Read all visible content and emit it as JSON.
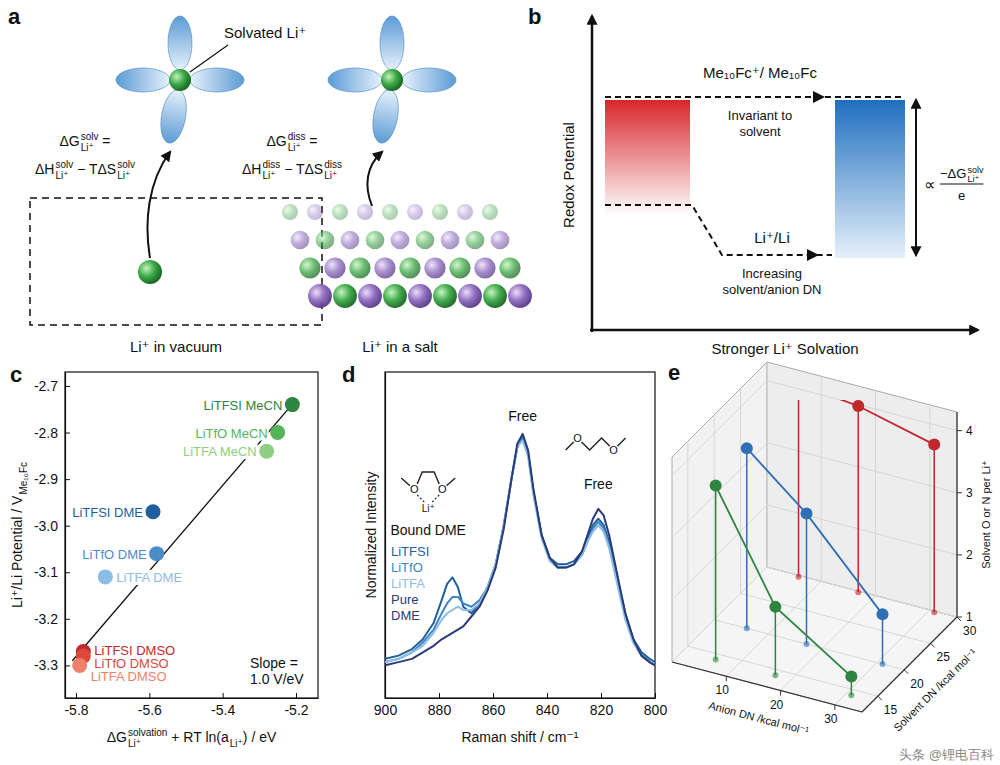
{
  "panel_a": {
    "letter": "a",
    "solvated_label": "Solvated Li⁺",
    "solvation_equation": [
      [
        {
          "text": "ΔG",
          "sup": "solv",
          "sub": "Li⁺"
        },
        {
          "text": " ="
        }
      ],
      [
        {
          "text": "ΔH",
          "sup": "solv",
          "sub": "Li⁺"
        },
        {
          "text": " − TΔS",
          "sup": "solv",
          "sub": "Li⁺"
        }
      ]
    ],
    "dissolution_equation": [
      [
        {
          "text": "ΔG",
          "sup": "diss",
          "sub": "Li⁺"
        },
        {
          "text": " ="
        }
      ],
      [
        {
          "text": "ΔH",
          "sup": "diss",
          "sub": "Li⁺"
        },
        {
          "text": " − TΔS",
          "sup": "diss",
          "sub": "Li⁺"
        }
      ]
    ],
    "vacuum_caption": "Li⁺ in vacuum",
    "salt_caption": "Li⁺ in a salt"
  },
  "panel_b": {
    "letter": "b",
    "y_label": "Redox Potential",
    "x_label": "Stronger Li⁺ Solvation",
    "reference_label": "Me₁₀Fc⁺/ Me₁₀Fc",
    "reference_note": [
      "Invariant to",
      "solvent"
    ],
    "lithium_label": "Li⁺/Li",
    "lithium_note": [
      "Increasing",
      "solvent/anion DN"
    ],
    "gap_label": {
      "symbol": "∝",
      "numerator": [
        {
          "text": "−ΔG",
          "sup": "solv",
          "sub": "Li⁺"
        }
      ],
      "denominator": "e"
    }
  },
  "chart_data": [
    {
      "panel_label": "c",
      "type": "scatter",
      "x_label": [
        {
          "text": "ΔG",
          "sup": "solvation",
          "sub": "Li⁺"
        },
        {
          "text": " + RT ln(a",
          "sub": "Li⁺"
        },
        {
          "text": ") / eV"
        }
      ],
      "y_label": [
        {
          "text": "Li⁺/Li Potential / V",
          "sub": "Me₁₀Fc"
        }
      ],
      "xlim": [
        -5.83,
        -5.14
      ],
      "xticks": [
        -5.8,
        -5.6,
        -5.4,
        -5.2
      ],
      "ylim": [
        -3.37,
        -2.67
      ],
      "yticks": [
        -2.7,
        -2.8,
        -2.9,
        {
          "value": -3,
          "label": "-3.0"
        },
        -3.1,
        -3.2,
        -3.3
      ],
      "point_labels": [
        "LiTFSI MeCN",
        "LiTfO MeCN",
        "LiTFA MeCN",
        "LiTFSI DME",
        "LiTfO DME",
        "LiTFA DME",
        "LiTFSI DMSO",
        "LiTfO DMSO",
        "LiTFA DMSO"
      ],
      "x": [
        -5.21,
        -5.25,
        -5.28,
        -5.59,
        -5.58,
        -5.72,
        -5.78,
        -5.78,
        -5.79
      ],
      "y": [
        -2.74,
        -2.8,
        -2.84,
        -2.97,
        -3.06,
        -3.11,
        -3.27,
        -3.28,
        -3.3
      ],
      "colors": [
        "#2e8540",
        "#55b35a",
        "#8fce85",
        "#1f5f9e",
        "#4a8cc7",
        "#8cbde3",
        "#c0282d",
        "#e0473c",
        "#f07f6b"
      ],
      "fit_line": {
        "x": [
          -5.81,
          -5.2
        ],
        "y": [
          -3.29,
          -2.73
        ]
      },
      "annotation": [
        "Slope =",
        "1.0 V/eV"
      ]
    },
    {
      "panel_label": "d",
      "type": "line",
      "x_label": "Raman shift / cm⁻¹",
      "y_label": "Normalized Intensity",
      "xlim": [
        900,
        800
      ],
      "xticks": [
        900,
        880,
        860,
        840,
        820,
        800
      ],
      "ylim": [
        0,
        1
      ],
      "yticks": [],
      "tick_labels": "x",
      "x": [
        900,
        895,
        890,
        886,
        882,
        879,
        877,
        875,
        873,
        871,
        868,
        865,
        862,
        859,
        856,
        853,
        851,
        849,
        847,
        845,
        842,
        839,
        836,
        833,
        830,
        827,
        825,
        823,
        821,
        819,
        817,
        814,
        811,
        808,
        805,
        802,
        800
      ],
      "series": [
        {
          "name": "LiTFSI",
          "color": "#1f5f9e",
          "values": [
            0.12,
            0.13,
            0.15,
            0.18,
            0.23,
            0.3,
            0.35,
            0.37,
            0.34,
            0.28,
            0.26,
            0.29,
            0.34,
            0.41,
            0.53,
            0.68,
            0.77,
            0.8,
            0.75,
            0.63,
            0.5,
            0.43,
            0.41,
            0.41,
            0.42,
            0.45,
            0.49,
            0.53,
            0.55,
            0.53,
            0.48,
            0.37,
            0.26,
            0.18,
            0.14,
            0.12,
            0.11
          ]
        },
        {
          "name": "LiTfO",
          "color": "#3d85c6",
          "values": [
            0.11,
            0.12,
            0.14,
            0.17,
            0.21,
            0.26,
            0.29,
            0.31,
            0.31,
            0.29,
            0.28,
            0.3,
            0.34,
            0.41,
            0.53,
            0.68,
            0.77,
            0.8,
            0.75,
            0.63,
            0.5,
            0.43,
            0.4,
            0.4,
            0.41,
            0.44,
            0.48,
            0.52,
            0.54,
            0.52,
            0.47,
            0.36,
            0.25,
            0.17,
            0.13,
            0.11,
            0.1
          ]
        },
        {
          "name": "LiTFA",
          "color": "#8cbde3",
          "values": [
            0.11,
            0.12,
            0.14,
            0.16,
            0.2,
            0.24,
            0.26,
            0.27,
            0.28,
            0.27,
            0.27,
            0.29,
            0.34,
            0.41,
            0.53,
            0.68,
            0.77,
            0.79,
            0.74,
            0.62,
            0.49,
            0.42,
            0.4,
            0.4,
            0.41,
            0.44,
            0.48,
            0.51,
            0.53,
            0.51,
            0.46,
            0.35,
            0.24,
            0.17,
            0.13,
            0.11,
            0.1
          ]
        },
        {
          "name": "Pure DME",
          "color": "#2b3a78",
          "values": [
            0.1,
            0.11,
            0.12,
            0.14,
            0.16,
            0.18,
            0.19,
            0.2,
            0.21,
            0.22,
            0.25,
            0.28,
            0.33,
            0.4,
            0.52,
            0.68,
            0.78,
            0.81,
            0.76,
            0.64,
            0.5,
            0.43,
            0.4,
            0.4,
            0.41,
            0.45,
            0.5,
            0.55,
            0.58,
            0.56,
            0.5,
            0.38,
            0.26,
            0.18,
            0.13,
            0.11,
            0.1
          ]
        }
      ],
      "annotations": [
        {
          "text": "Free",
          "x": 849,
          "y": 0.85
        },
        {
          "text": "Free",
          "x": 821,
          "y": 0.64
        },
        {
          "text": "Bound DME",
          "x": 884,
          "y": 0.5
        }
      ],
      "molecule_atom": "O",
      "bound_ion": "Li⁺"
    },
    {
      "panel_label": "e",
      "type": "scatter3d",
      "x_label": "Anion DN /kcal mol⁻¹",
      "y_label": "Solvent DN /kcal mol⁻¹",
      "z_label": "Solvent O or N per Li⁺",
      "xlim": [
        0,
        35
      ],
      "xticks": [
        10,
        20,
        30
      ],
      "ylim": [
        12,
        30
      ],
      "yticks": [
        15,
        20,
        25,
        30
      ],
      "zlim": [
        1,
        4.3
      ],
      "zticks": [
        1,
        2,
        3,
        4
      ],
      "grid": true,
      "series": [
        {
          "color": "#c0282d",
          "x": [
            6,
            17,
            31
          ],
          "y": [
            29.8,
            29.8,
            29.8
          ],
          "z": [
            4.1,
            4.0,
            3.7
          ]
        },
        {
          "color": "#2f6fb5",
          "x": [
            6,
            17,
            31
          ],
          "y": [
            20,
            20,
            20
          ],
          "z": [
            3.9,
            3.1,
            1.8
          ]
        },
        {
          "color": "#2e8540",
          "x": [
            6,
            17,
            31
          ],
          "y": [
            14.1,
            14.1,
            14.1
          ],
          "z": [
            3.8,
            2.1,
            1.3
          ]
        }
      ]
    }
  ],
  "watermark": "头条 @锂电百科"
}
